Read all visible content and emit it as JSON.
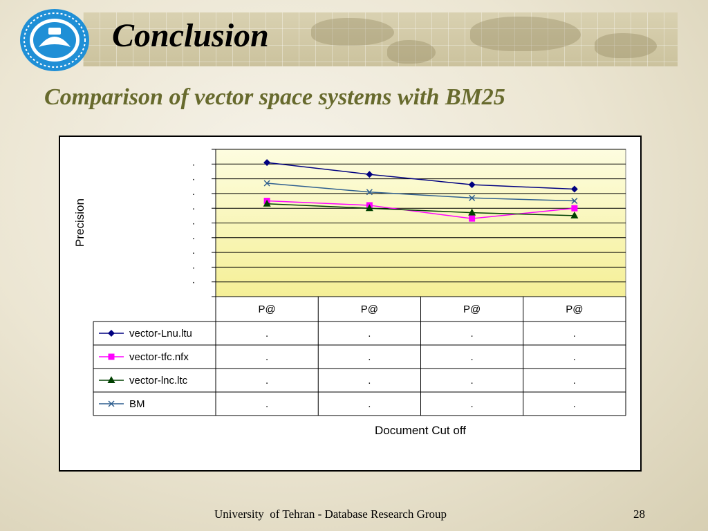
{
  "slide": {
    "title": "Conclusion",
    "subtitle": "Comparison of vector space systems with BM25",
    "footer": "University  of Tehran - Database Research Group",
    "page_number": "28"
  },
  "colors": {
    "subtitle": "#676a2d",
    "band_light": "#fdfde0",
    "band_dark": "#f5ef96"
  },
  "chart_data": {
    "type": "line",
    "ylabel": "Precision",
    "xlabel": "Document Cut off",
    "categories": [
      "P@",
      "P@",
      "P@",
      "P@"
    ],
    "y_tick_labels": [
      ".",
      ".",
      ".",
      ".",
      ".",
      ".",
      ".",
      ".",
      "."
    ],
    "ylim": [
      0,
      1
    ],
    "grid": true,
    "series": [
      {
        "name": "vector-Lnu.ltu",
        "color": "#000080",
        "marker": "diamond",
        "values": [
          0.91,
          0.83,
          0.76,
          0.73
        ],
        "table_values": [
          ".",
          ".",
          ".",
          "."
        ]
      },
      {
        "name": "vector-tfc.nfx",
        "color": "#ff00ff",
        "marker": "square",
        "values": [
          0.65,
          0.62,
          0.53,
          0.6
        ],
        "table_values": [
          ".",
          ".",
          ".",
          "."
        ]
      },
      {
        "name": "vector-lnc.ltc",
        "color": "#004000",
        "marker": "triangle",
        "values": [
          0.63,
          0.6,
          0.57,
          0.55
        ],
        "table_values": [
          ".",
          ".",
          ".",
          "."
        ]
      },
      {
        "name": "BM",
        "color": "#2f5f8f",
        "marker": "x",
        "values": [
          0.77,
          0.71,
          0.67,
          0.65
        ],
        "table_values": [
          ".",
          ".",
          ".",
          "."
        ]
      }
    ]
  }
}
